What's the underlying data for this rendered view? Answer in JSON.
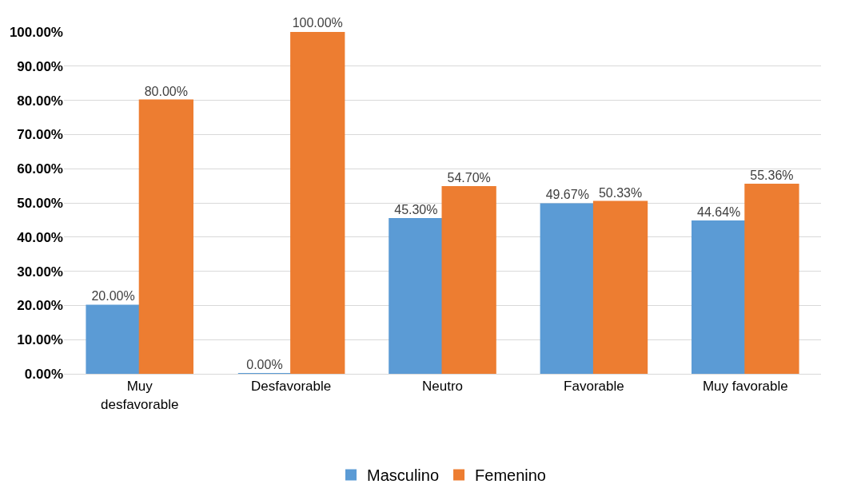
{
  "chart_data": {
    "type": "bar",
    "categories": [
      "Muy desfavorable",
      "Desfavorable",
      "Neutro",
      "Favorable",
      "Muy favorable"
    ],
    "series": [
      {
        "name": "Masculino",
        "color": "#5b9bd5",
        "values": [
          20,
          0,
          45.3,
          49.67,
          44.64
        ],
        "value_labels": [
          "20.00%",
          "0.00%",
          "45.30%",
          "49.67%",
          "44.64%"
        ]
      },
      {
        "name": "Femenino",
        "color": "#ed7d31",
        "values": [
          80,
          100,
          54.7,
          50.33,
          55.36
        ],
        "value_labels": [
          "80.00%",
          "100.00%",
          "54.70%",
          "50.33%",
          "55.36%"
        ]
      }
    ],
    "ylim": [
      0,
      100
    ],
    "yticks": [
      {
        "value": 0,
        "label": "0.00%"
      },
      {
        "value": 10,
        "label": "10.00%"
      },
      {
        "value": 20,
        "label": "20.00%"
      },
      {
        "value": 30,
        "label": "30.00%"
      },
      {
        "value": 40,
        "label": "40.00%"
      },
      {
        "value": 50,
        "label": "50.00%"
      },
      {
        "value": 60,
        "label": "60.00%"
      },
      {
        "value": 70,
        "label": "70.00%"
      },
      {
        "value": 80,
        "label": "80.00%"
      },
      {
        "value": 90,
        "label": "90.00%"
      },
      {
        "value": 100,
        "label": "100.00%"
      }
    ],
    "grid": "y",
    "legend": "bottom"
  }
}
